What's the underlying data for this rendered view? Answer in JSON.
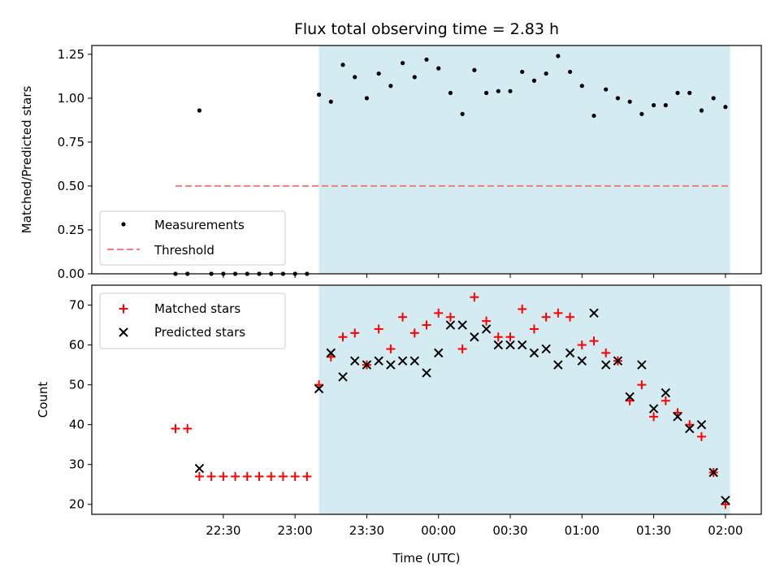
{
  "chart_data": [
    {
      "type": "scatter",
      "title": "Flux total observing time = 2.83 h",
      "ylabel": "Matched/Predicted stars",
      "ylim": [
        0,
        1.3
      ],
      "yticks": [
        0.0,
        0.25,
        0.5,
        0.75,
        1.0,
        1.25
      ],
      "yticklabels": [
        "0.00",
        "0.25",
        "0.50",
        "0.75",
        "1.00",
        "1.25"
      ],
      "shaded_span": [
        "23:10",
        "02:02"
      ],
      "shade_color": "#d3ebf1",
      "legend_position": "lower-left",
      "series": [
        {
          "name": "Measurements",
          "marker": "dot",
          "color": "#000000",
          "x": [
            "22:10",
            "22:15",
            "22:20",
            "22:25",
            "22:30",
            "22:35",
            "22:40",
            "22:45",
            "22:50",
            "22:55",
            "23:00",
            "23:05",
            "23:10",
            "23:15",
            "23:20",
            "23:25",
            "23:30",
            "23:35",
            "23:40",
            "23:45",
            "23:50",
            "23:55",
            "00:00",
            "00:05",
            "00:10",
            "00:15",
            "00:20",
            "00:25",
            "00:30",
            "00:35",
            "00:40",
            "00:45",
            "00:50",
            "00:55",
            "01:00",
            "01:05",
            "01:10",
            "01:15",
            "01:20",
            "01:25",
            "01:30",
            "01:35",
            "01:40",
            "01:45",
            "01:50",
            "01:55",
            "02:00"
          ],
          "y": [
            0,
            0,
            0.93,
            0,
            0,
            0,
            0,
            0,
            0,
            0,
            0,
            0,
            1.02,
            0.98,
            1.19,
            1.12,
            1.0,
            1.14,
            1.07,
            1.2,
            1.12,
            1.22,
            1.17,
            1.03,
            0.91,
            1.16,
            1.03,
            1.04,
            1.04,
            1.15,
            1.1,
            1.14,
            1.24,
            1.15,
            1.07,
            0.9,
            1.05,
            1.0,
            0.98,
            0.91,
            0.96,
            0.96,
            1.03,
            1.03,
            0.93,
            1.0,
            0.95
          ]
        },
        {
          "name": "Threshold",
          "style": "dashed",
          "color": "#f08080",
          "x": [
            "22:10",
            "02:02"
          ],
          "y": [
            0.5,
            0.5
          ]
        }
      ]
    },
    {
      "type": "scatter",
      "xlabel": "Time (UTC)",
      "ylabel": "Count",
      "ylim": [
        17.5,
        75
      ],
      "yticks": [
        20,
        30,
        40,
        50,
        60,
        70
      ],
      "xticks": [
        "22:30",
        "23:00",
        "23:30",
        "00:00",
        "00:30",
        "01:00",
        "01:30",
        "02:00"
      ],
      "shaded_span": [
        "23:10",
        "02:02"
      ],
      "shade_color": "#d3ebf1",
      "legend_position": "upper-left",
      "series": [
        {
          "name": "Matched stars",
          "marker": "plus",
          "color": "#ff0000",
          "x": [
            "22:10",
            "22:15",
            "22:20",
            "22:25",
            "22:30",
            "22:35",
            "22:40",
            "22:45",
            "22:50",
            "22:55",
            "23:00",
            "23:05",
            "23:10",
            "23:15",
            "23:20",
            "23:25",
            "23:30",
            "23:35",
            "23:40",
            "23:45",
            "23:50",
            "23:55",
            "00:00",
            "00:05",
            "00:10",
            "00:15",
            "00:20",
            "00:25",
            "00:30",
            "00:35",
            "00:40",
            "00:45",
            "00:50",
            "00:55",
            "01:00",
            "01:05",
            "01:10",
            "01:15",
            "01:20",
            "01:25",
            "01:30",
            "01:35",
            "01:40",
            "01:45",
            "01:50",
            "01:55",
            "02:00"
          ],
          "y": [
            39,
            39,
            27,
            27,
            27,
            27,
            27,
            27,
            27,
            27,
            27,
            27,
            50,
            57,
            62,
            63,
            55,
            64,
            59,
            67,
            63,
            65,
            68,
            67,
            59,
            72,
            66,
            62,
            62,
            69,
            64,
            67,
            68,
            67,
            60,
            61,
            58,
            56,
            46,
            50,
            42,
            46,
            43,
            40,
            37,
            28,
            20
          ]
        },
        {
          "name": "Predicted stars",
          "marker": "x",
          "color": "#000000",
          "x": [
            "22:20",
            "23:10",
            "23:15",
            "23:20",
            "23:25",
            "23:30",
            "23:35",
            "23:40",
            "23:45",
            "23:50",
            "23:55",
            "00:00",
            "00:05",
            "00:10",
            "00:15",
            "00:20",
            "00:25",
            "00:30",
            "00:35",
            "00:40",
            "00:45",
            "00:50",
            "00:55",
            "01:00",
            "01:05",
            "01:10",
            "01:15",
            "01:20",
            "01:25",
            "01:30",
            "01:35",
            "01:40",
            "01:45",
            "01:50",
            "01:55",
            "02:00"
          ],
          "y": [
            29,
            49,
            58,
            52,
            56,
            55,
            56,
            55,
            56,
            56,
            53,
            58,
            65,
            65,
            62,
            64,
            60,
            60,
            60,
            58,
            59,
            55,
            58,
            56,
            68,
            55,
            56,
            47,
            55,
            44,
            48,
            42,
            39,
            40,
            28,
            21
          ]
        }
      ]
    }
  ]
}
